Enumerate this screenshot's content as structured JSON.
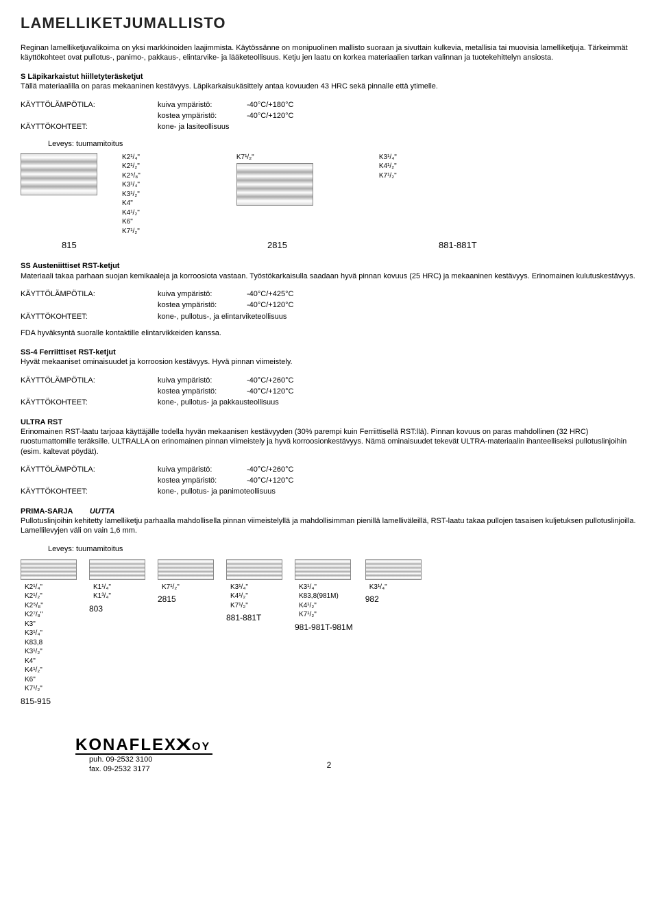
{
  "title": "LAMELLIKETJUMALLISTO",
  "intro": "Reginan lamelliketjuvalikoima on yksi markkinoiden laajimmista. Käytössänne on monipuolinen mallisto suoraan ja sivuttain kulkevia, metallisia tai muovisia lamelliketjuja. Tärkeimmät käyttökohteet ovat  pullotus-, panimo-, pakkaus-, elintarvike- ja lääketeollisuus. Ketju jen laatu on korkea materiaalien tarkan valinnan ja tuotekehittelyn ansiosta.",
  "s_section_title": "S Läpikarkaistut hiilletyteräsketjut",
  "s_section_text": "Tällä materiaalilla on paras mekaaninen kestävyys. Läpikarkaisukäsittely antaa kovuuden 43 HRC sekä pinnalle että ytimelle.",
  "lbl_kayttolampo": "KÄYTTÖLÄMPÖTILA:",
  "lbl_kayttokohteet": "KÄYTTÖKOHTEET:",
  "lbl_kuiva": "kuiva ympäristö:",
  "lbl_kostea": "kostea ympäristö:",
  "s_kuiva": "-40°C/+180°C",
  "s_kostea": "-40°C/+120°C",
  "s_kohteet": "kone- ja lasiteollisuus",
  "leveys_label": "Leveys: tuumamitoitus",
  "chain1": {
    "col1": [
      "K2¹/₄\"",
      "K2¹/₂\"",
      "K2⁵/₈\"",
      "K3¹/₄\"",
      "K3¹/₂\"",
      "K4\"",
      "K4¹/₂\"",
      "K6\"",
      "K7¹/₂\""
    ],
    "col2_top": "K7¹/₂\"",
    "col3": [
      "K3¹/₄\"",
      "K4¹/₂\"",
      "K7¹/₂\""
    ],
    "codes": [
      "815",
      "2815",
      "881-881T"
    ]
  },
  "ss_title": "SS Austeniittiset RST-ketjut",
  "ss_text": "Materiaali takaa parhaan suojan kemikaaleja ja korroosiota vastaan. Työstökarkaisulla saadaan hyvä pinnan kovuus (25 HRC) ja mekaaninen kestävyys. Erinomainen kulutuskestävyys.",
  "ss_kuiva": "-40°C/+425°C",
  "ss_kostea": "-40°C/+120°C",
  "ss_kohteet": "kone-, pullotus-, ja elintarviketeollisuus",
  "fda_text": "FDA hyväksyntä suoralle kontaktille elintarvikkeiden kanssa.",
  "ss4_title": "SS-4 Ferriittiset RST-ketjut",
  "ss4_text": "Hyvät mekaaniset ominaisuudet ja korroosion kestävyys. Hyvä pinnan viimeistely.",
  "ss4_kuiva": "-40°C/+260°C",
  "ss4_kostea": "-40°C/+120°C",
  "ss4_kohteet": "kone-, pullotus- ja pakkausteollisuus",
  "ultra_title": "ULTRA RST",
  "ultra_text": "Erinomainen RST-laatu tarjoaa käyttäjälle todella hyvän mekaanisen kestävyyden (30% parempi kuin Ferriittisellä RST:llä). Pinnan kovuus on paras mahdollinen (32 HRC) ruostumattomille teräksille. ULTRALLA on erinomainen pinnan viimeistely ja hyvä korroosionkestävyys. Nämä ominaisuudet tekevät ULTRA-materiaalin ihanteelliseksi pullotuslinjoihin (esim. kaltevat pöydät).",
  "ultra_kuiva": "-40°C/+260°C",
  "ultra_kostea": "-40°C/+120°C",
  "ultra_kohteet": "kone-, pullotus- ja panimoteollisuus",
  "prima_label": "PRIMA-SARJA",
  "prima_uutta": "UUTTA",
  "prima_text": "Pullotuslinjoihin kehitetty lamelliketju  parhaalla mahdollisella pinnan viimeistelyllä ja mahdollisimman pienillä lamelliväleillä, RST-laatu takaa pullojen tasaisen kuljetuksen pullotuslinjoilla.  Lamellilevyjen väli on vain 1,6 mm.",
  "chain2": {
    "cols": [
      {
        "sizes": [
          "K2¹/₄\"",
          "K2¹/₂\"",
          "K2⁵/₈\"",
          "K2⁷/₈\"",
          "K3\"",
          "K3¹/₄\"",
          "K83,8",
          "K3¹/₂\"",
          "K4\"",
          "K4¹/₂\"",
          "K6\"",
          "K7¹/₂\""
        ],
        "code": "815-915"
      },
      {
        "sizes": [
          "K1¹/₄\"",
          "K1³/₄\""
        ],
        "code": "803"
      },
      {
        "sizes": [
          "K7¹/₂\""
        ],
        "code": "2815"
      },
      {
        "sizes": [
          "K3¹/₄\"",
          "K4¹/₂\"",
          "K7¹/₂\""
        ],
        "code": "881-881T"
      },
      {
        "sizes": [
          "K3¹/₄\"",
          "K83,8(981M)",
          "K4¹/₂\"",
          "K7¹/₂\""
        ],
        "code": "981-981T-981M"
      },
      {
        "sizes": [
          "K3¹/₄\""
        ],
        "code": "982"
      }
    ]
  },
  "logo_text": "KONAFLEX",
  "logo_suffix": "OY",
  "phone": "puh. 09-2532 3100",
  "fax": "fax. 09-2532 3177",
  "page": "2"
}
